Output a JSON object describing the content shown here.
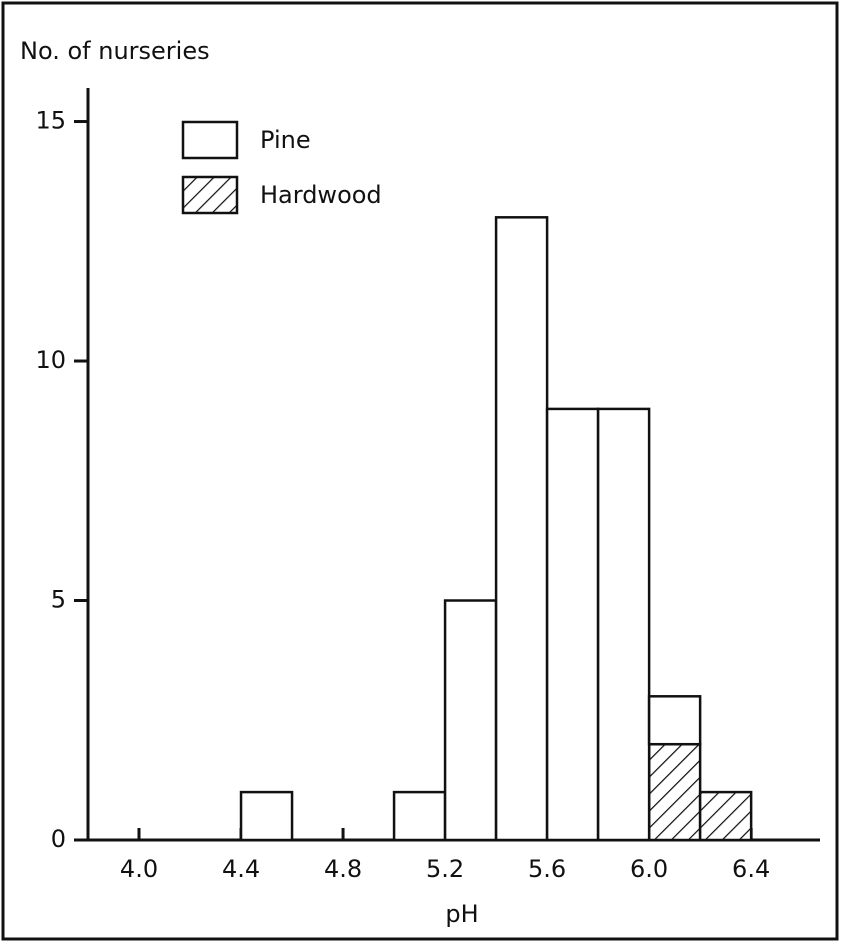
{
  "chart_data": {
    "type": "histogram",
    "ylabel": "No. of nurseries",
    "xlabel": "pH",
    "bins": [
      4.0,
      4.2,
      4.4,
      4.6,
      4.8,
      5.0,
      5.2,
      5.4,
      5.6,
      5.8,
      6.0,
      6.2,
      6.4
    ],
    "series": [
      {
        "name": "Pine",
        "color": "#ffffff",
        "values": [
          0,
          0,
          1,
          0,
          0,
          1,
          5,
          13,
          9,
          9,
          1,
          0
        ]
      },
      {
        "name": "Hardwood",
        "color": "#ffffff",
        "hatch": true,
        "values": [
          0,
          0,
          0,
          0,
          0,
          0,
          0,
          0,
          0,
          0,
          2,
          1
        ]
      }
    ],
    "stacked": true,
    "xlim": [
      3.8,
      6.67
    ],
    "ylim": [
      0,
      15.7
    ],
    "xticks": [
      {
        "value": 4.0,
        "label": "4.0"
      },
      4.4,
      4.8,
      5.2,
      5.6,
      {
        "value": 6.0,
        "label": "6.0"
      },
      6.4
    ],
    "yticks": [
      0,
      5,
      10,
      15
    ],
    "legend": "upper left"
  }
}
